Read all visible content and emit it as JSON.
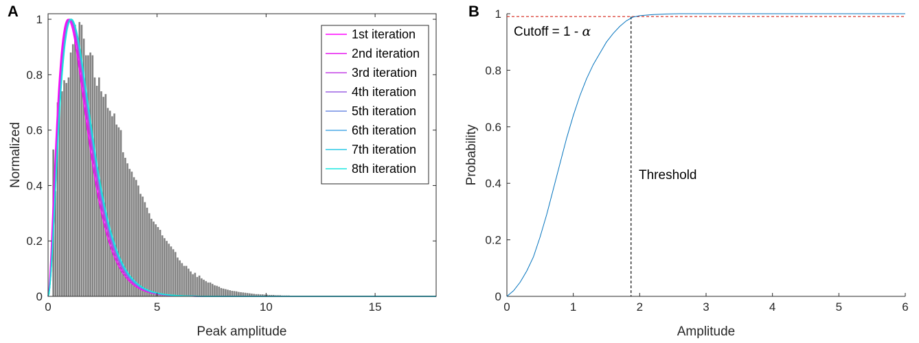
{
  "figure": {
    "panel_a_label": "A",
    "panel_b_label": "B"
  },
  "chart_data": [
    {
      "type": "bar",
      "xlabel": "Peak amplitude",
      "ylabel": "Normalized",
      "xlim": [
        0,
        17.8
      ],
      "ylim": [
        0,
        1.02
      ],
      "xticks": [
        0,
        5,
        10,
        15
      ],
      "yticks": [
        0,
        0.2,
        0.4,
        0.6,
        0.8,
        1
      ],
      "ytick_labels": [
        "0",
        "0.2",
        "0.4",
        "0.6",
        "0.8",
        "1"
      ],
      "grid": false,
      "legend_position": "top-right",
      "histogram": {
        "bin_width": 0.1,
        "color": "#7f7f7f",
        "values": [
          0,
          0,
          0.53,
          0.38,
          0.7,
          0.73,
          0.74,
          0.78,
          0.77,
          0.79,
          0.88,
          0.91,
          0.98,
          0.89,
          0.99,
          0.98,
          0.93,
          0.87,
          0.87,
          0.88,
          0.87,
          0.79,
          0.76,
          0.79,
          0.74,
          0.72,
          0.73,
          0.68,
          0.67,
          0.65,
          0.66,
          0.62,
          0.61,
          0.6,
          0.52,
          0.5,
          0.48,
          0.46,
          0.45,
          0.43,
          0.42,
          0.4,
          0.37,
          0.36,
          0.34,
          0.32,
          0.3,
          0.28,
          0.27,
          0.26,
          0.25,
          0.24,
          0.22,
          0.21,
          0.2,
          0.19,
          0.18,
          0.17,
          0.16,
          0.14,
          0.13,
          0.12,
          0.11,
          0.11,
          0.1,
          0.09,
          0.08,
          0.085,
          0.07,
          0.075,
          0.065,
          0.06,
          0.055,
          0.05,
          0.05,
          0.045,
          0.04,
          0.038,
          0.035,
          0.03,
          0.028,
          0.026,
          0.024,
          0.022,
          0.02,
          0.019,
          0.018,
          0.016,
          0.015,
          0.014,
          0.013,
          0.012,
          0.011,
          0.01,
          0.009,
          0.008,
          0.008,
          0.007,
          0.007,
          0.006,
          0.006,
          0.005,
          0.005,
          0.005,
          0.004,
          0.004,
          0.004,
          0.003,
          0.003,
          0.003,
          0.003,
          0.002,
          0.002,
          0.002,
          0.002,
          0.002,
          0.002,
          0.002,
          0.001,
          0.001,
          0.001,
          0.001,
          0.001,
          0.001,
          0.001,
          0.001,
          0.001,
          0.001,
          0.001,
          0.001,
          0.001,
          0.001,
          0.001,
          0.001,
          0.001,
          0.001,
          0.001,
          0.001,
          0.001,
          0.001,
          0,
          0,
          0,
          0,
          0,
          0,
          0,
          0,
          0,
          0,
          0,
          0,
          0,
          0,
          0,
          0,
          0,
          0,
          0,
          0,
          0,
          0,
          0,
          0,
          0,
          0,
          0,
          0,
          0,
          0,
          0,
          0,
          0,
          0,
          0,
          0,
          0,
          0,
          0,
          0
        ]
      },
      "series": [
        {
          "name": "1st iteration",
          "color": "#ff00ff",
          "mode": 0.92,
          "shape": 1.75
        },
        {
          "name": "2nd iteration",
          "color": "#e619ef",
          "mode": 0.97,
          "shape": 1.85
        },
        {
          "name": "3rd iteration",
          "color": "#c23fe6",
          "mode": 1.0,
          "shape": 1.95
        },
        {
          "name": "4th iteration",
          "color": "#9b61e2",
          "mode": 1.02,
          "shape": 2.0
        },
        {
          "name": "5th iteration",
          "color": "#6f8be3",
          "mode": 1.04,
          "shape": 2.03
        },
        {
          "name": "6th iteration",
          "color": "#4aa9e5",
          "mode": 1.05,
          "shape": 2.05
        },
        {
          "name": "7th iteration",
          "color": "#2bc8e6",
          "mode": 1.06,
          "shape": 2.06
        },
        {
          "name": "8th iteration",
          "color": "#19e6df",
          "mode": 1.07,
          "shape": 2.07
        }
      ]
    },
    {
      "type": "line",
      "xlabel": "Amplitude",
      "ylabel": "Probability",
      "xlim": [
        0,
        6
      ],
      "ylim": [
        0,
        1
      ],
      "xticks": [
        0,
        1,
        2,
        3,
        4,
        5,
        6
      ],
      "yticks": [
        0,
        0.2,
        0.4,
        0.6,
        0.8,
        1
      ],
      "ytick_labels": [
        "0",
        "0.2",
        "0.4",
        "0.6",
        "0.8",
        "1"
      ],
      "grid": false,
      "cdf": {
        "color": "#0072bd",
        "x": [
          0,
          0.1,
          0.2,
          0.3,
          0.4,
          0.5,
          0.6,
          0.7,
          0.8,
          0.9,
          1.0,
          1.1,
          1.2,
          1.3,
          1.4,
          1.5,
          1.6,
          1.7,
          1.8,
          1.9,
          2.0,
          2.2,
          2.4,
          2.6,
          3.0,
          4.0,
          5.0,
          6.0
        ],
        "y": [
          0,
          0.02,
          0.05,
          0.09,
          0.14,
          0.21,
          0.29,
          0.38,
          0.47,
          0.56,
          0.64,
          0.71,
          0.77,
          0.82,
          0.86,
          0.9,
          0.93,
          0.955,
          0.975,
          0.988,
          0.993,
          0.997,
          0.999,
          1,
          1,
          1,
          1,
          1
        ]
      },
      "cutoff": {
        "y": 0.99,
        "label": "Cutoff = 1 - ",
        "symbol": "α",
        "color": "#d9372b"
      },
      "threshold": {
        "x": 1.87,
        "label": "Threshold",
        "color": "#000000"
      }
    }
  ]
}
